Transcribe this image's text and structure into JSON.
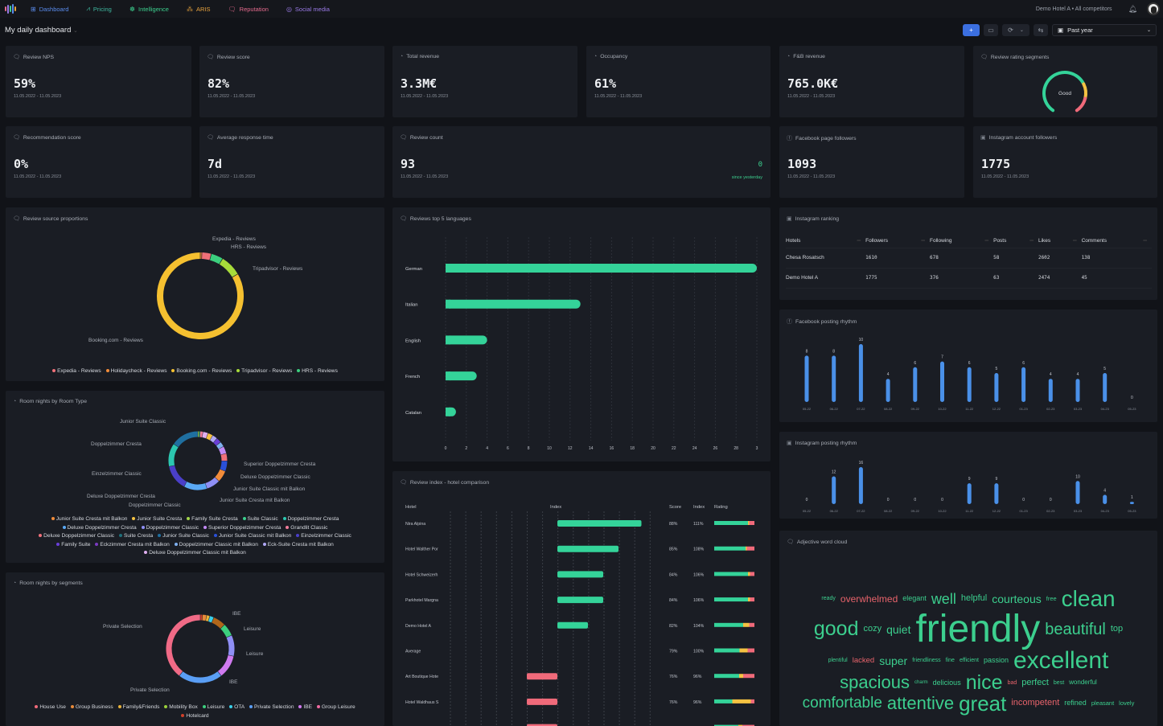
{
  "nav": {
    "items": [
      {
        "label": "Dashboard",
        "icon": "grid-icon",
        "color": "#5b8def"
      },
      {
        "label": "Pricing",
        "icon": "chart-line-icon",
        "color": "#3fb9a0"
      },
      {
        "label": "Intelligence",
        "icon": "brain-icon",
        "color": "#3ccf8e"
      },
      {
        "label": "ARIS",
        "icon": "aris-icon",
        "color": "#e8a33d"
      },
      {
        "label": "Reputation",
        "icon": "chat-icon",
        "color": "#e56b8e"
      },
      {
        "label": "Social media",
        "icon": "social-icon",
        "color": "#9b7be8"
      }
    ],
    "hotel": "Demo Hotel A",
    "separator": "•",
    "competitors": "All competitors"
  },
  "header": {
    "title": "My daily dashboard",
    "add": "+",
    "period": "Past year"
  },
  "kpis": [
    {
      "title": "Review NPS",
      "value": "59%",
      "dates": "11.05.2022 - 11.05.2023"
    },
    {
      "title": "Review score",
      "value": "82%",
      "dates": "11.05.2022 - 11.05.2023"
    },
    {
      "title": "Total revenue",
      "value": "3.3M€",
      "dates": "11.05.2022 - 11.05.2023"
    },
    {
      "title": "Occupancy",
      "value": "61%",
      "dates": "11.05.2022 - 11.05.2023"
    },
    {
      "title": "F&B revenue",
      "value": "765.0K€",
      "dates": "11.05.2022 - 11.05.2023"
    },
    {
      "title": "Review rating segments",
      "gauge_label": "Good",
      "gauge_segments": [
        0.72,
        0.14,
        0.14
      ]
    },
    {
      "title": "Recommendation score",
      "value": "0%",
      "dates": "11.05.2022 - 11.05.2023"
    },
    {
      "title": "Average response time",
      "value": "7d",
      "dates": "11.05.2022 - 11.05.2023"
    },
    {
      "title": "Review count",
      "value": "93",
      "dates": "11.05.2022 - 11.05.2023",
      "delta": "0",
      "delta_label": "since yesterday"
    },
    {
      "title": "Facebook page followers",
      "value": "1093",
      "dates": "11.05.2022 - 11.05.2023"
    },
    {
      "title": "Instagram account followers",
      "value": "1775",
      "dates": "11.05.2022 - 11.05.2023"
    }
  ],
  "instagram_ranking": {
    "title": "Instagram ranking",
    "columns": [
      "Hotels",
      "Followers",
      "Following",
      "Posts",
      "Likes",
      "Comments"
    ],
    "rows": [
      [
        "Chesa Rosatsch",
        "1610",
        "678",
        "58",
        "2602",
        "138"
      ],
      [
        "Demo Hotel A",
        "1775",
        "376",
        "63",
        "2474",
        "45"
      ]
    ]
  },
  "wordcloud": {
    "title": "Adjective word cloud",
    "positive_color": "#3ccf8e",
    "negative_color": "#e8636b",
    "words": [
      {
        "text": "friendly",
        "neg": false
      },
      {
        "text": "excellent",
        "neg": false
      },
      {
        "text": "clean",
        "neg": false
      },
      {
        "text": "good",
        "neg": false
      },
      {
        "text": "nice",
        "neg": false
      },
      {
        "text": "great",
        "neg": false
      },
      {
        "text": "attentive",
        "neg": false
      },
      {
        "text": "spacious",
        "neg": false
      },
      {
        "text": "beautiful",
        "neg": false
      },
      {
        "text": "comfortable",
        "neg": false
      },
      {
        "text": "well",
        "neg": false
      },
      {
        "text": "courteous",
        "neg": false
      },
      {
        "text": "super",
        "neg": false
      },
      {
        "text": "quiet",
        "neg": false
      },
      {
        "text": "cozy",
        "neg": false
      },
      {
        "text": "overwhelmed",
        "neg": true
      },
      {
        "text": "incompetent",
        "neg": true
      },
      {
        "text": "helpful",
        "neg": false
      },
      {
        "text": "perfect",
        "neg": false
      },
      {
        "text": "top",
        "neg": false
      },
      {
        "text": "lacked",
        "neg": true
      },
      {
        "text": "passion",
        "neg": false
      },
      {
        "text": "delicious",
        "neg": false
      },
      {
        "text": "refined",
        "neg": false
      },
      {
        "text": "elegant",
        "neg": false
      },
      {
        "text": "ready",
        "neg": false
      },
      {
        "text": "free",
        "neg": false
      },
      {
        "text": "friendliness",
        "neg": false
      },
      {
        "text": "fine",
        "neg": false
      },
      {
        "text": "efficient",
        "neg": false
      },
      {
        "text": "plentiful",
        "neg": false
      },
      {
        "text": "charm",
        "neg": false
      },
      {
        "text": "best",
        "neg": false
      },
      {
        "text": "wonderful",
        "neg": false
      },
      {
        "text": "bad",
        "neg": true
      },
      {
        "text": "pleasant",
        "neg": false
      },
      {
        "text": "lovely",
        "neg": false
      }
    ]
  },
  "chart_data": [
    {
      "id": "review-source",
      "type": "pie",
      "title": "Review source proportions",
      "segments": [
        {
          "name": "Holidaycheck - Reviews",
          "value": 0.6,
          "color": "#f28c3a"
        },
        {
          "name": "Expedia - Reviews",
          "value": 3.5,
          "color": "#f07078"
        },
        {
          "name": "HRS - Reviews",
          "value": 4.5,
          "color": "#3ccf7e"
        },
        {
          "name": "Tripadvisor - Reviews",
          "value": 8,
          "color": "#a8dc3a"
        },
        {
          "name": "Booking.com - Reviews",
          "value": 83.4,
          "color": "#f5c030"
        }
      ],
      "legend": [
        "Expedia - Reviews",
        "Holidaycheck - Reviews",
        "Booking.com - Reviews",
        "Tripadvisor - Reviews",
        "HRS - Reviews"
      ],
      "callouts": [
        "Expedia - Reviews",
        "HRS - Reviews",
        "Tripadvisor - Reviews",
        "Booking.com - Reviews"
      ]
    },
    {
      "id": "room-type",
      "type": "pie",
      "title": "Room nights by Room Type",
      "segments": [
        {
          "name": "Family Suite Cresta",
          "value": 0.5,
          "color": "#a3d64b"
        },
        {
          "name": "Suite Classic",
          "value": 0.5,
          "color": "#3ccf8e"
        },
        {
          "name": "Grandlit Classic",
          "value": 1.2,
          "color": "#f07c9a"
        },
        {
          "name": "Deluxe Doppelzimmer Classic mit Balkon",
          "value": 2.2,
          "color": "#e0b0f0"
        },
        {
          "name": "Junior Suite Cresta",
          "value": 2.2,
          "color": "#f5c242"
        },
        {
          "name": "Eck-Suite Cresta mit Balkon",
          "value": 2.2,
          "color": "#b0a8f5"
        },
        {
          "name": "Family Suite",
          "value": 2.2,
          "color": "#6a3fd8"
        },
        {
          "name": "Doppelzimmer Classic mit Balkon",
          "value": 2.2,
          "color": "#7fb0f0"
        },
        {
          "name": "Superior Doppelzimmer Cresta",
          "value": 3.2,
          "color": "#c28af5"
        },
        {
          "name": "Deluxe Doppelzimmer Classic",
          "value": 3.2,
          "color": "#f0707a"
        },
        {
          "name": "Junior Suite Classic mit Balkon",
          "value": 4.5,
          "color": "#2a50d8"
        },
        {
          "name": "Junior Suite Cresta mit Balkon",
          "value": 5,
          "color": "#f28c3a"
        },
        {
          "name": "Doppelzimmer Classic",
          "value": 6,
          "color": "#8f8ff5"
        },
        {
          "name": "Deluxe Doppelzimmer Cresta",
          "value": 10,
          "color": "#5aa9f5"
        },
        {
          "name": "Einzelzimmer Classic",
          "value": 11,
          "color": "#4a3fc9"
        },
        {
          "name": "Doppelzimmer Cresta",
          "value": 10,
          "color": "#2cc7b0"
        },
        {
          "name": "Junior Suite Classic",
          "value": 12,
          "color": "#1f6fa0"
        }
      ],
      "legend": [
        {
          "name": "Junior Suite Cresta mit Balkon",
          "color": "#f28c3a"
        },
        {
          "name": "Junior Suite Cresta",
          "color": "#f5c242"
        },
        {
          "name": "Family Suite Cresta",
          "color": "#a3d64b"
        },
        {
          "name": "Suite Classic",
          "color": "#3ccf8e"
        },
        {
          "name": "Doppelzimmer Cresta",
          "color": "#2cc7b0"
        },
        {
          "name": "Deluxe Doppelzimmer Cresta",
          "color": "#5aa9f5"
        },
        {
          "name": "Doppelzimmer Classic",
          "color": "#8f8ff5"
        },
        {
          "name": "Superior Doppelzimmer Cresta",
          "color": "#c28af5"
        },
        {
          "name": "Grandlit Classic",
          "color": "#f07c9a"
        },
        {
          "name": "Deluxe Doppelzimmer Classic",
          "color": "#f0707a"
        },
        {
          "name": "Suite Cresta",
          "color": "#1f6f7a"
        },
        {
          "name": "Junior Suite Classic",
          "color": "#1f6fa0"
        },
        {
          "name": "Junior Suite Classic mit Balkon",
          "color": "#2a50d8"
        },
        {
          "name": "Einzelzimmer Classic",
          "color": "#4a3fc9"
        },
        {
          "name": "Family Suite",
          "color": "#6a3fd8"
        },
        {
          "name": "Eckzimmer Cresta mit Balkon",
          "color": "#7a3ac0"
        },
        {
          "name": "Doppelzimmer Classic mit Balkon",
          "color": "#7fb0f0"
        },
        {
          "name": "Eck-Suite Cresta mit Balkon",
          "color": "#b0a8f5"
        },
        {
          "name": "Deluxe Doppelzimmer Classic mit Balkon",
          "color": "#e0b0f0"
        }
      ],
      "callouts": [
        "Junior Suite Classic",
        "Doppelzimmer Cresta",
        "Einzelzimmer Classic",
        "Deluxe Doppelzimmer Cresta",
        "Doppelzimmer Classic",
        "Superior Doppelzimmer Cresta",
        "Deluxe Doppelzimmer Classic",
        "Junior Suite Classic mit Balkon",
        "Junior Suite Cresta mit Balkon"
      ]
    },
    {
      "id": "segments",
      "type": "pie",
      "title": "Room nights by segments",
      "segments": [
        {
          "name": "Hotelcard",
          "value": 1,
          "color": "#d0402a"
        },
        {
          "name": "Group Business",
          "value": 2,
          "color": "#e88a3a"
        },
        {
          "name": "Family&Friends",
          "value": 1.5,
          "color": "#e8b23a"
        },
        {
          "name": "OTA",
          "value": 2,
          "color": "#3ad0e8"
        },
        {
          "name": "IBE",
          "value": 6,
          "color": "#b0661a"
        },
        {
          "name": "Leisure",
          "value": 6,
          "color": "#3ccf7e"
        },
        {
          "name": "Leisure",
          "value": 10,
          "color": "#8f8ff5"
        },
        {
          "name": "IBE",
          "value": 11,
          "color": "#d07af0"
        },
        {
          "name": "Private Selection",
          "value": 21,
          "color": "#5a9ef5"
        },
        {
          "name": "Private Selection",
          "value": 39.5,
          "color": "#f06a86"
        }
      ],
      "legend": [
        {
          "name": "House Use",
          "color": "#f06a7a"
        },
        {
          "name": "Group Business",
          "color": "#e88a3a"
        },
        {
          "name": "Family&Friends",
          "color": "#e8b23a"
        },
        {
          "name": "Mobility Box",
          "color": "#9ad03a"
        },
        {
          "name": "Leisure",
          "color": "#3ccf7e"
        },
        {
          "name": "OTA",
          "color": "#3ad0e8"
        },
        {
          "name": "Private Selection",
          "color": "#5a9ef5"
        },
        {
          "name": "IBE",
          "color": "#d07af0"
        },
        {
          "name": "Group Leisure",
          "color": "#f06aa0"
        },
        {
          "name": "Hotelcard",
          "color": "#d0402a"
        }
      ],
      "callouts": [
        "IBE",
        "Leisure",
        "Leisure",
        "IBE",
        "Private Selection",
        "Private Selection"
      ]
    },
    {
      "id": "languages",
      "type": "bar",
      "orientation": "horizontal",
      "title": "Reviews top 5 languages",
      "categories": [
        "German",
        "Italian",
        "English",
        "French",
        "Catalan"
      ],
      "values": [
        30,
        13,
        4,
        3,
        1
      ],
      "xlim": [
        0,
        30
      ],
      "xticks": [
        "0",
        "2",
        "4",
        "6",
        "8",
        "10",
        "12",
        "14",
        "16",
        "18",
        "20",
        "22",
        "24",
        "26",
        "28",
        "3"
      ],
      "color": "#34d399",
      "grid": true
    },
    {
      "id": "review-index",
      "type": "bar",
      "title": "Review index - hotel comparison",
      "columns": [
        "Hotel",
        "Index",
        "Score",
        "Index",
        "Rating"
      ],
      "baseline": 100,
      "rows": [
        {
          "hotel": "Nira Alpina",
          "score": "88%",
          "index": 111,
          "index_label": "111%",
          "rating": [
            0.84,
            0.03,
            0.13
          ]
        },
        {
          "hotel": "Hotel Walther Por",
          "score": "85%",
          "index": 108,
          "index_label": "108%",
          "rating": [
            0.78,
            0.03,
            0.19
          ]
        },
        {
          "hotel": "Hotel Schweizerh",
          "score": "84%",
          "index": 106,
          "index_label": "106%",
          "rating": [
            0.84,
            0.05,
            0.11
          ]
        },
        {
          "hotel": "Parkhotel Margna",
          "score": "84%",
          "index": 106,
          "index_label": "106%",
          "rating": [
            0.84,
            0.05,
            0.11
          ]
        },
        {
          "hotel": "Demo Hotel A",
          "score": "82%",
          "index": 104,
          "index_label": "104%",
          "rating": [
            0.72,
            0.15,
            0.13
          ]
        },
        {
          "hotel": "Average",
          "score": "79%",
          "index": 100,
          "index_label": "100%",
          "rating": [
            0.63,
            0.2,
            0.17
          ]
        },
        {
          "hotel": "Art Boutique Hote",
          "score": "76%",
          "index": 96,
          "index_label": "96%",
          "rating": [
            0.62,
            0.1,
            0.28
          ]
        },
        {
          "hotel": "Hotel Waldhaus S",
          "score": "76%",
          "index": 96,
          "index_label": "96%",
          "rating": [
            0.45,
            0.46,
            0.09
          ]
        }
      ],
      "positive_color": "#34d399",
      "negative_color": "#f06a7a"
    },
    {
      "id": "facebook-rhythm",
      "type": "bar",
      "title": "Facebook posting rhythm",
      "categories": [
        "05-22",
        "06-22",
        "07-22",
        "08-22",
        "09-22",
        "10-22",
        "11-22",
        "12-22",
        "01-23",
        "02-23",
        "03-23",
        "04-23",
        "05-23"
      ],
      "values": [
        8,
        8,
        10,
        4,
        6,
        7,
        6,
        5,
        6,
        4,
        4,
        5,
        0
      ],
      "color": "#4a90e8"
    },
    {
      "id": "instagram-rhythm",
      "type": "bar",
      "title": "Instagram posting rhythm",
      "categories": [
        "05-22",
        "06-22",
        "07-22",
        "08-22",
        "09-22",
        "10-22",
        "11-22",
        "12-22",
        "01-23",
        "02-23",
        "03-23",
        "04-23",
        "05-23"
      ],
      "values": [
        0,
        12,
        16,
        0,
        0,
        0,
        9,
        9,
        0,
        0,
        10,
        4,
        1
      ],
      "color": "#4a90e8"
    }
  ]
}
